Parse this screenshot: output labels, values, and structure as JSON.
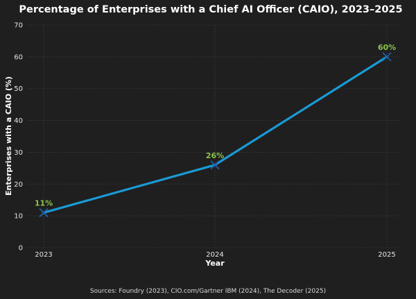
{
  "chart_data": {
    "type": "line",
    "title": "Percentage of Enterprises with a Chief AI Officer (CAIO), 2023–2025",
    "xlabel": "Year",
    "ylabel": "Enterprises with a CAIO (%)",
    "x": [
      "2023",
      "2024",
      "2025"
    ],
    "series": [
      {
        "values": [
          11,
          26,
          60
        ],
        "labels": [
          "11%",
          "26%",
          "60%"
        ]
      }
    ],
    "ylim": [
      0,
      70
    ],
    "yticks": [
      "0",
      "10",
      "20",
      "30",
      "40",
      "50",
      "60",
      "70"
    ],
    "grid": true,
    "line_color": "#1a9ad6",
    "marker_color": "#1f5fa8",
    "label_color": "#8bc34a",
    "source": "Sources: Foundry (2023), CIO.com/Gartner IBM (2024), The Decoder (2025)"
  }
}
